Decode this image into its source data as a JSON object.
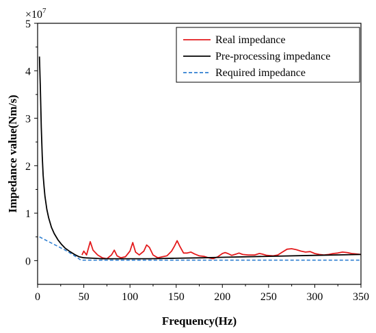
{
  "chart_data": {
    "type": "line",
    "xlabel": "Frequency(Hz)",
    "ylabel": "Impedance value(Nm/s)",
    "y_scale_label": "×10",
    "y_scale_exponent": "7",
    "xlim": [
      0,
      350
    ],
    "ylim": [
      -0.5,
      5
    ],
    "x_ticks": [
      0,
      50,
      100,
      150,
      200,
      250,
      300,
      350
    ],
    "x_tick_labels": [
      "0",
      "50",
      "100",
      "150",
      "200",
      "250",
      "300",
      "350"
    ],
    "y_ticks": [
      0,
      1,
      2,
      3,
      4,
      5
    ],
    "y_tick_labels": [
      "0",
      "1",
      "2",
      "3",
      "4",
      "5"
    ],
    "grid": false,
    "legend_position": "top-right",
    "series": [
      {
        "name": "Real impedance",
        "color": "#e31a1c",
        "dash": "solid",
        "points": [
          [
            48,
            0.12
          ],
          [
            50,
            0.2
          ],
          [
            53,
            0.12
          ],
          [
            57,
            0.4
          ],
          [
            60,
            0.22
          ],
          [
            65,
            0.12
          ],
          [
            70,
            0.06
          ],
          [
            75,
            0.04
          ],
          [
            80,
            0.12
          ],
          [
            83,
            0.22
          ],
          [
            86,
            0.1
          ],
          [
            90,
            0.06
          ],
          [
            95,
            0.08
          ],
          [
            100,
            0.2
          ],
          [
            103,
            0.38
          ],
          [
            106,
            0.18
          ],
          [
            110,
            0.12
          ],
          [
            115,
            0.2
          ],
          [
            118,
            0.33
          ],
          [
            121,
            0.28
          ],
          [
            125,
            0.12
          ],
          [
            130,
            0.06
          ],
          [
            135,
            0.08
          ],
          [
            140,
            0.1
          ],
          [
            145,
            0.2
          ],
          [
            148,
            0.3
          ],
          [
            151,
            0.42
          ],
          [
            154,
            0.3
          ],
          [
            158,
            0.16
          ],
          [
            162,
            0.16
          ],
          [
            166,
            0.18
          ],
          [
            170,
            0.14
          ],
          [
            175,
            0.1
          ],
          [
            180,
            0.09
          ],
          [
            185,
            0.06
          ],
          [
            190,
            0.04
          ],
          [
            195,
            0.08
          ],
          [
            200,
            0.15
          ],
          [
            203,
            0.17
          ],
          [
            206,
            0.15
          ],
          [
            210,
            0.11
          ],
          [
            215,
            0.14
          ],
          [
            218,
            0.16
          ],
          [
            222,
            0.13
          ],
          [
            228,
            0.12
          ],
          [
            235,
            0.12
          ],
          [
            240,
            0.15
          ],
          [
            243,
            0.14
          ],
          [
            248,
            0.11
          ],
          [
            255,
            0.1
          ],
          [
            260,
            0.12
          ],
          [
            265,
            0.18
          ],
          [
            270,
            0.24
          ],
          [
            275,
            0.25
          ],
          [
            280,
            0.23
          ],
          [
            285,
            0.2
          ],
          [
            290,
            0.18
          ],
          [
            295,
            0.19
          ],
          [
            300,
            0.15
          ],
          [
            305,
            0.13
          ],
          [
            310,
            0.12
          ],
          [
            315,
            0.13
          ],
          [
            320,
            0.15
          ],
          [
            325,
            0.16
          ],
          [
            330,
            0.18
          ],
          [
            335,
            0.17
          ],
          [
            340,
            0.15
          ],
          [
            345,
            0.14
          ],
          [
            350,
            0.13
          ]
        ]
      },
      {
        "name": "Pre-processing impedance",
        "color": "#000000",
        "dash": "solid",
        "points": [
          [
            2,
            4.3
          ],
          [
            3,
            3.6
          ],
          [
            4,
            2.8
          ],
          [
            5,
            2.2
          ],
          [
            6,
            1.8
          ],
          [
            7,
            1.55
          ],
          [
            8,
            1.35
          ],
          [
            10,
            1.08
          ],
          [
            12,
            0.9
          ],
          [
            15,
            0.7
          ],
          [
            18,
            0.57
          ],
          [
            22,
            0.44
          ],
          [
            26,
            0.34
          ],
          [
            30,
            0.26
          ],
          [
            35,
            0.19
          ],
          [
            40,
            0.13
          ],
          [
            45,
            0.08
          ],
          [
            50,
            0.06
          ],
          [
            60,
            0.05
          ],
          [
            70,
            0.04
          ],
          [
            80,
            0.04
          ],
          [
            100,
            0.04
          ],
          [
            120,
            0.04
          ],
          [
            150,
            0.05
          ],
          [
            180,
            0.06
          ],
          [
            200,
            0.07
          ],
          [
            250,
            0.09
          ],
          [
            300,
            0.11
          ],
          [
            350,
            0.13
          ]
        ]
      },
      {
        "name": "Required impedance",
        "color": "#2f7fd1",
        "dash": "dashed",
        "points": [
          [
            2,
            0.5
          ],
          [
            10,
            0.42
          ],
          [
            20,
            0.32
          ],
          [
            30,
            0.22
          ],
          [
            40,
            0.1
          ],
          [
            47,
            0.01
          ],
          [
            60,
            0.01
          ],
          [
            100,
            0.01
          ],
          [
            200,
            0.01
          ],
          [
            300,
            0.01
          ],
          [
            350,
            0.01
          ]
        ]
      }
    ]
  }
}
